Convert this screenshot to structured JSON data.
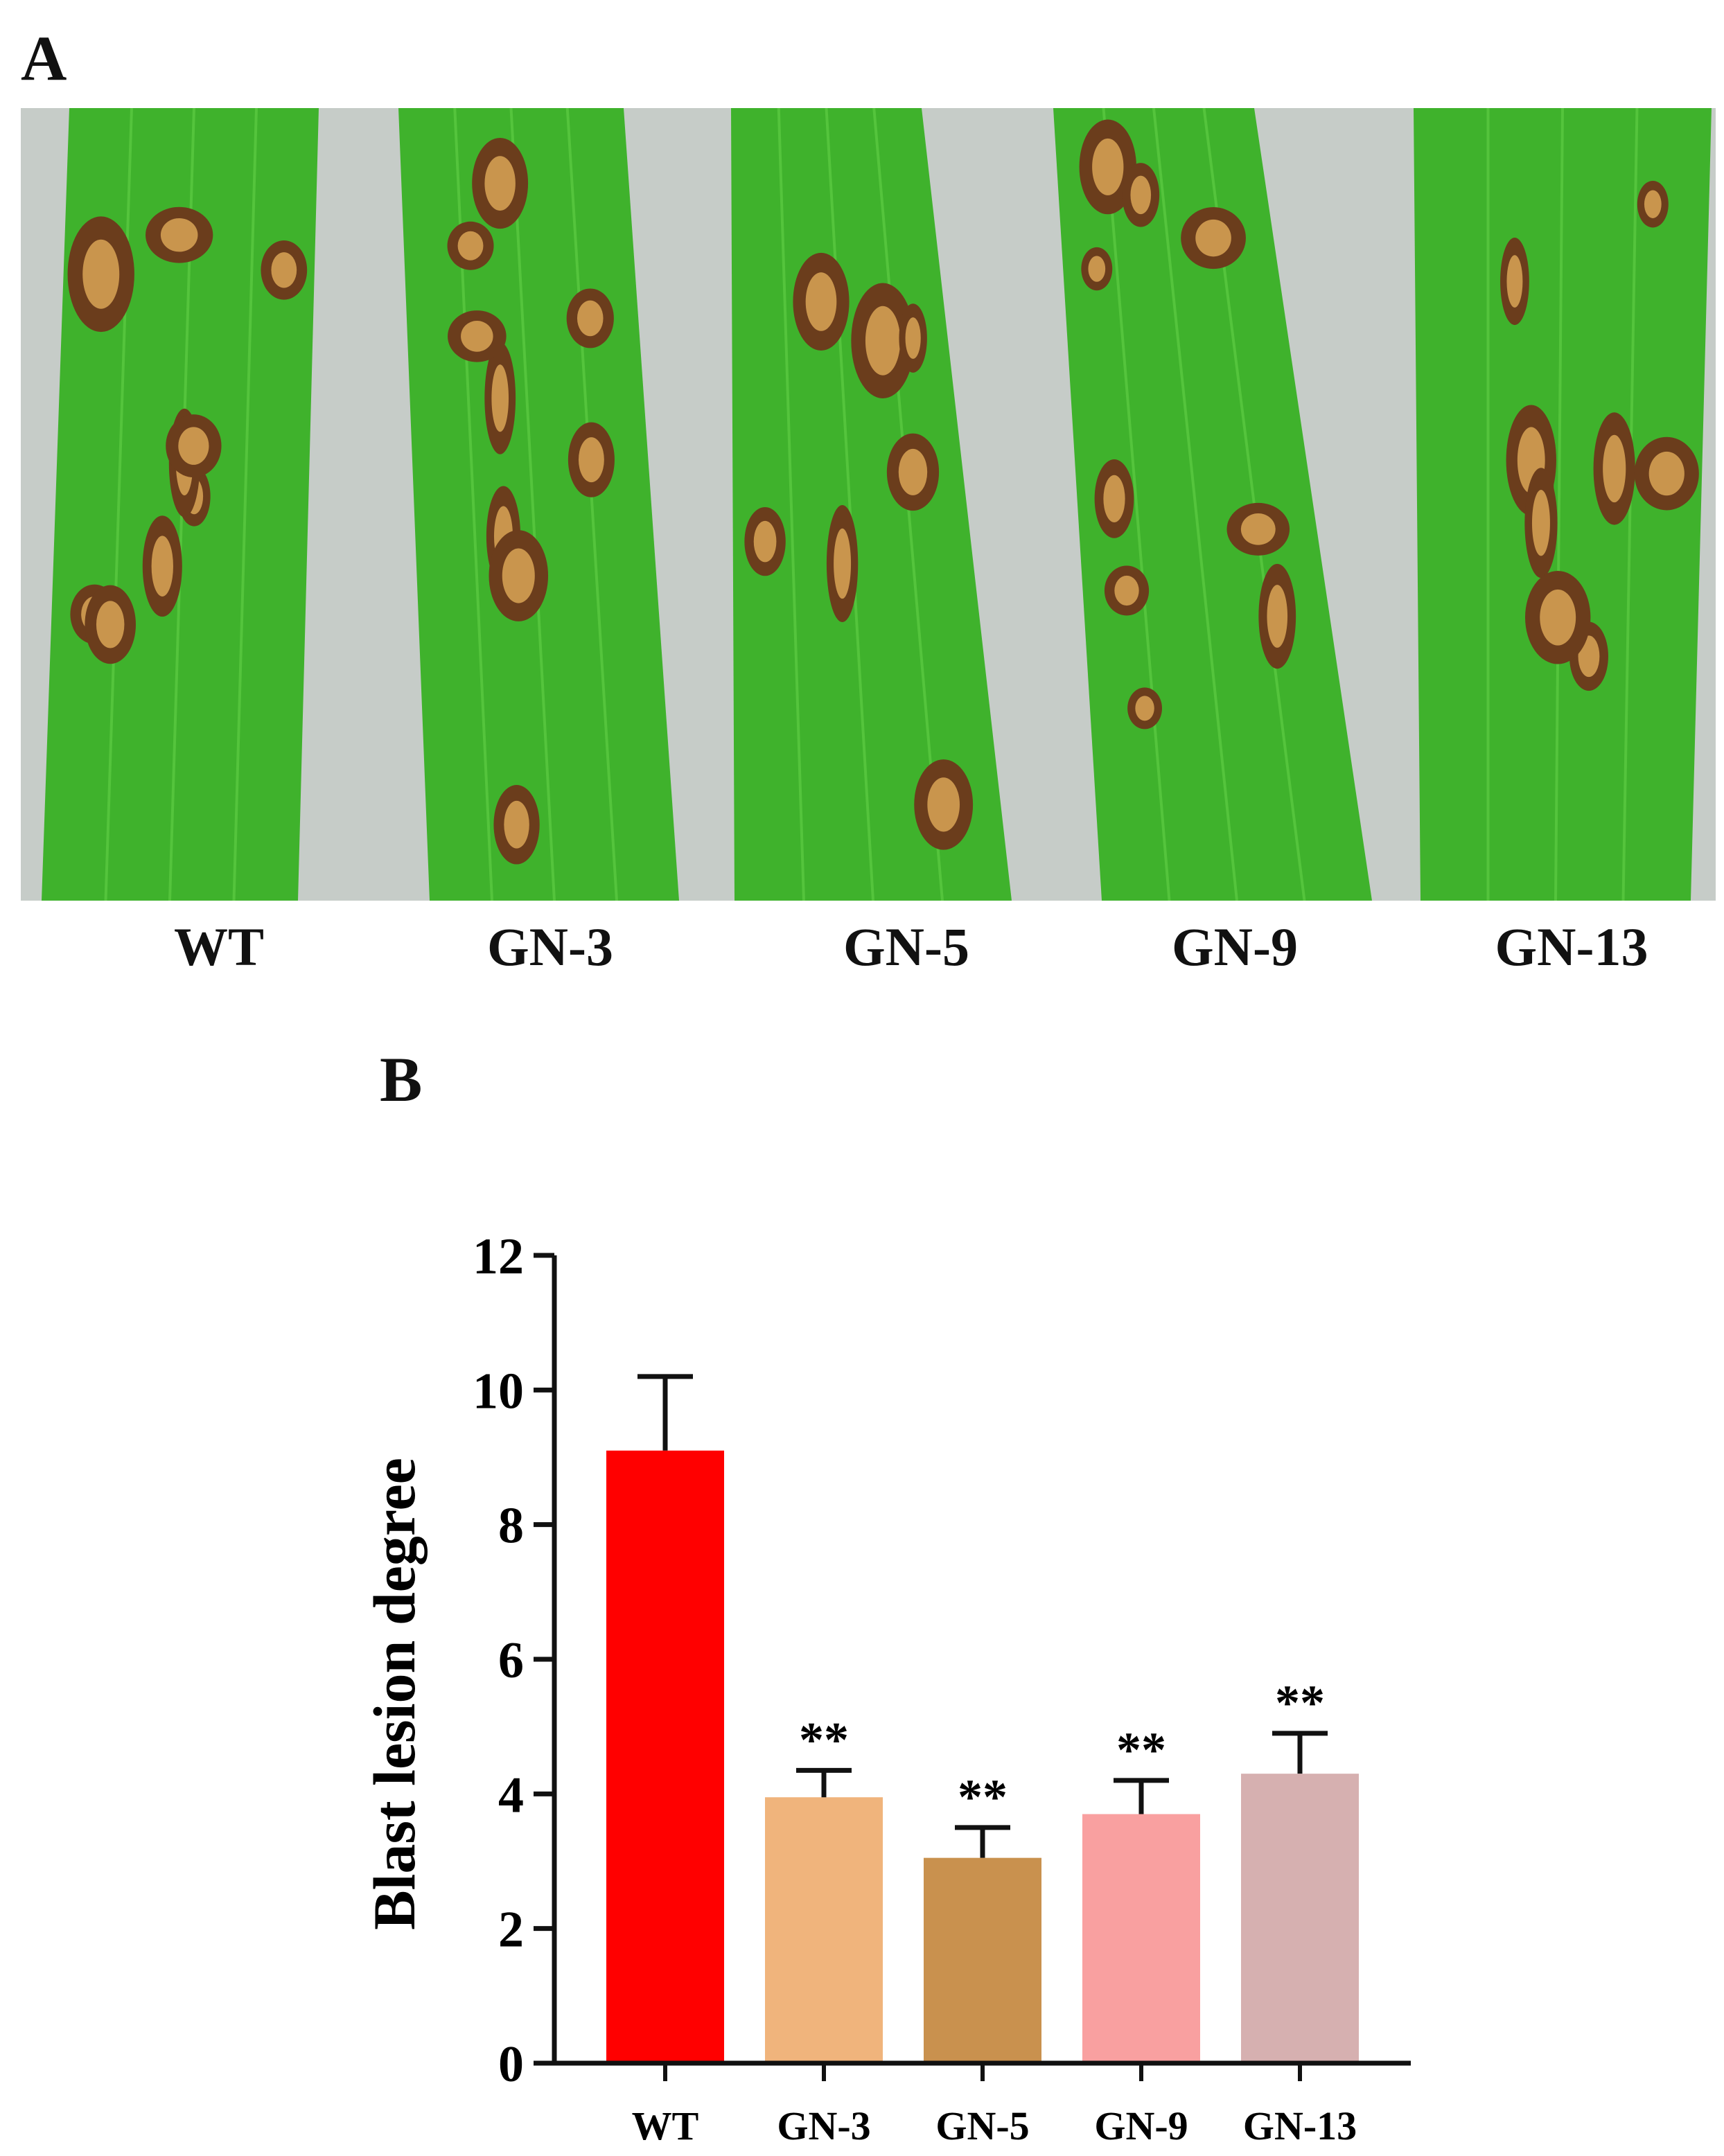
{
  "panel_a": {
    "label": "A",
    "leaves": [
      "WT",
      "GN-3",
      "GN-5",
      "GN-9",
      "GN-13"
    ]
  },
  "panel_b": {
    "label": "B"
  },
  "colors": {
    "background_gray": "#c6ccc8",
    "leaf_green": "#3fb22c",
    "lesion_brown": "#6b3d1c",
    "lesion_tan": "#c9954d"
  },
  "chart_data": {
    "type": "bar",
    "title": "",
    "xlabel": "",
    "ylabel": "Blast lesion degree",
    "ylim": [
      0,
      12
    ],
    "yticks": [
      0,
      2,
      4,
      6,
      8,
      10,
      12
    ],
    "categories": [
      "WT",
      "GN-3",
      "GN-5",
      "GN-9",
      "GN-13"
    ],
    "values": [
      9.1,
      3.95,
      3.05,
      3.7,
      4.3
    ],
    "errors": [
      1.1,
      0.4,
      0.45,
      0.5,
      0.6
    ],
    "annotations": [
      "",
      "**",
      "**",
      "**",
      "**"
    ],
    "bar_colors": [
      "#ff0000",
      "#f0b47c",
      "#c9914e",
      "#f9a0a0",
      "#d6b0b0"
    ],
    "grid": false,
    "legend": "none"
  }
}
